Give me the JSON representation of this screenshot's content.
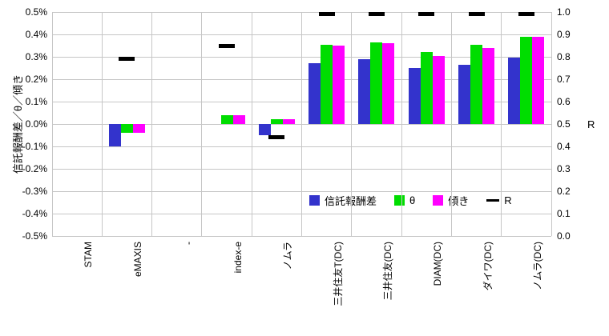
{
  "chart_data": {
    "type": "bar",
    "title": "",
    "categories": [
      "STAM",
      "eMAXIS",
      "-",
      "index-e",
      "ノムラ",
      "三井住友T(DC)",
      "三井住友(DC)",
      "DIAM(DC)",
      "ダイワ(DC)",
      "ノムラ(DC)"
    ],
    "series": [
      {
        "name": "信託報酬差",
        "type": "bar",
        "color": "#3333cc",
        "axis": "left",
        "values": [
          null,
          -0.1,
          null,
          null,
          -0.05,
          0.27,
          0.29,
          0.25,
          0.265,
          0.295
        ]
      },
      {
        "name": "θ",
        "type": "bar",
        "color": "#00dd00",
        "axis": "left",
        "values": [
          null,
          -0.04,
          null,
          0.04,
          0.02,
          0.355,
          0.365,
          0.32,
          0.355,
          0.39
        ]
      },
      {
        "name": "傾き",
        "type": "bar",
        "color": "#ff00ff",
        "axis": "left",
        "values": [
          null,
          -0.04,
          null,
          0.04,
          0.02,
          0.35,
          0.36,
          0.305,
          0.34,
          0.39
        ]
      },
      {
        "name": "R",
        "type": "marker",
        "color": "#000000",
        "axis": "right",
        "values": [
          null,
          0.79,
          null,
          0.85,
          0.44,
          0.99,
          0.99,
          0.99,
          0.99,
          0.99
        ]
      }
    ],
    "left_axis": {
      "title": "信託報酬差／θ／傾き",
      "min": -0.5,
      "max": 0.5,
      "ticks": [
        "0.5%",
        "0.4%",
        "0.3%",
        "0.2%",
        "0.1%",
        "0.0%",
        "-0.1%",
        "-0.2%",
        "-0.3%",
        "-0.4%",
        "-0.5%"
      ]
    },
    "right_axis": {
      "title": "R",
      "min": 0.0,
      "max": 1.0,
      "ticks": [
        "1.0",
        "0.9",
        "0.8",
        "0.7",
        "0.6",
        "0.5",
        "0.4",
        "0.3",
        "0.2",
        "0.1",
        "0.0"
      ]
    },
    "grid": true,
    "legend_position": "inside-bottom"
  }
}
